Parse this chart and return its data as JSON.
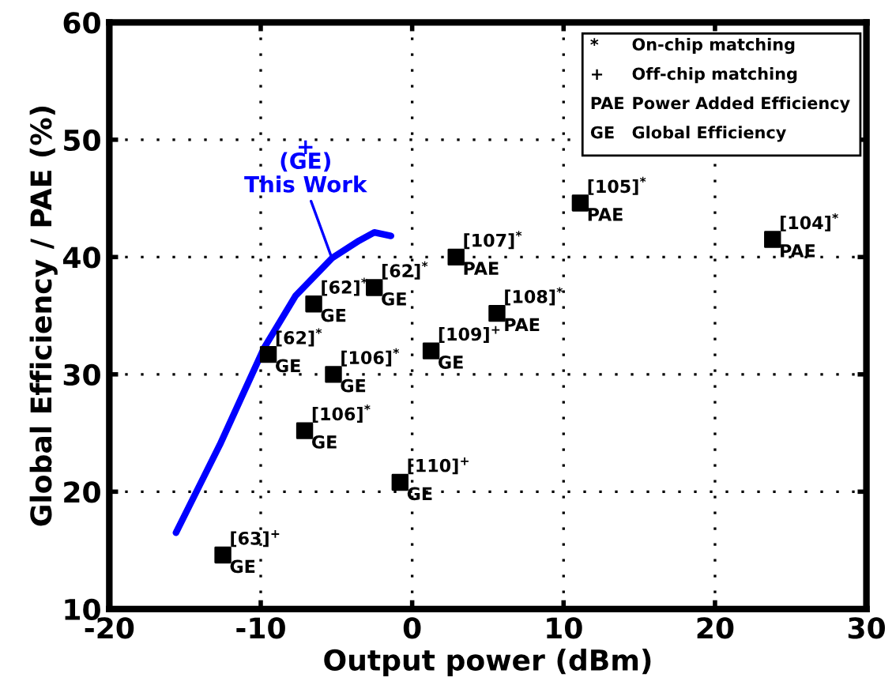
{
  "chart_data": {
    "type": "scatter",
    "xlabel": "Output power (dBm)",
    "ylabel": "Global Efficiency / PAE (%)",
    "xlim": [
      -20,
      30
    ],
    "ylim": [
      10,
      60
    ],
    "xticks": [
      -20,
      -10,
      0,
      10,
      20,
      30
    ],
    "yticks": [
      10,
      20,
      30,
      40,
      50,
      60
    ],
    "grid": true,
    "marker": "square",
    "series": [
      {
        "color": "#000000",
        "x": [
          -9.5,
          -5.2,
          -7.1,
          -6.5,
          -2.5,
          2.9,
          5.6,
          11.1,
          23.8,
          -12.5,
          -0.8,
          1.25
        ],
        "values": [
          31.7,
          30.0,
          25.2,
          36.0,
          37.4,
          40.0,
          35.2,
          44.6,
          41.5,
          14.6,
          20.8,
          32.0
        ]
      },
      {
        "type": "line",
        "color": "#0000ff",
        "marker": "none",
        "x": [
          -15.6,
          -12.7,
          -9.8,
          -7.7,
          -5.3,
          -3.5,
          -2.5,
          -1.4
        ],
        "values": [
          16.5,
          24.0,
          32.2,
          36.7,
          39.9,
          41.4,
          42.1,
          41.8
        ]
      }
    ],
    "annotations": [
      "*  On-chip matching",
      "+  Off-chip matching",
      "PAE  Power Added Efficiency",
      "GE  Global Efficiency",
      {
        "text": "This Work",
        "x": -5.3,
        "y": 39.9
      },
      "(GE)",
      "+",
      {
        "text": "[62]$^{*}$",
        "x": -9.5,
        "y": 31.7
      },
      {
        "text": "GE",
        "x": -9.5,
        "y": 31.7
      },
      {
        "text": "[106]$^{*}$",
        "x": -5.2,
        "y": 30.0
      },
      {
        "text": "GE",
        "x": -5.2,
        "y": 30.0
      },
      {
        "text": "[106]$^{*}$",
        "x": -7.1,
        "y": 25.2
      },
      {
        "text": "GE",
        "x": -7.1,
        "y": 25.2
      },
      {
        "text": "[62]$^{*}$",
        "x": -6.5,
        "y": 36.0
      },
      {
        "text": "GE",
        "x": -6.5,
        "y": 36.0
      },
      {
        "text": "[62]$^{*}$",
        "x": -2.5,
        "y": 37.4
      },
      {
        "text": "GE",
        "x": -2.5,
        "y": 37.4
      },
      {
        "text": "[107]$^{*}$",
        "x": 2.9,
        "y": 40.0
      },
      {
        "text": "PAE",
        "x": 2.9,
        "y": 40.0
      },
      {
        "text": "[108]$^{*}$",
        "x": 5.6,
        "y": 35.2
      },
      {
        "text": "PAE",
        "x": 5.6,
        "y": 35.2
      },
      {
        "text": "[105]$^{*}$",
        "x": 11.1,
        "y": 44.6
      },
      {
        "text": "PAE",
        "x": 11.1,
        "y": 44.6
      },
      {
        "text": "[104]$^{*}$",
        "x": 23.8,
        "y": 41.5
      },
      {
        "text": "PAE",
        "x": 23.8,
        "y": 41.5
      },
      {
        "text": "[63]$^{+}$",
        "x": -12.5,
        "y": 14.6
      },
      {
        "text": "GE",
        "x": -12.5,
        "y": 14.6
      },
      {
        "text": "[110]$^{+}$",
        "x": -0.8,
        "y": 20.8
      },
      {
        "text": "GE",
        "x": -0.8,
        "y": 20.8
      },
      {
        "text": "[109]$^{+}$",
        "x": 1.25,
        "y": 32.0
      },
      {
        "text": "GE",
        "x": 1.25,
        "y": 32.0
      }
    ]
  }
}
